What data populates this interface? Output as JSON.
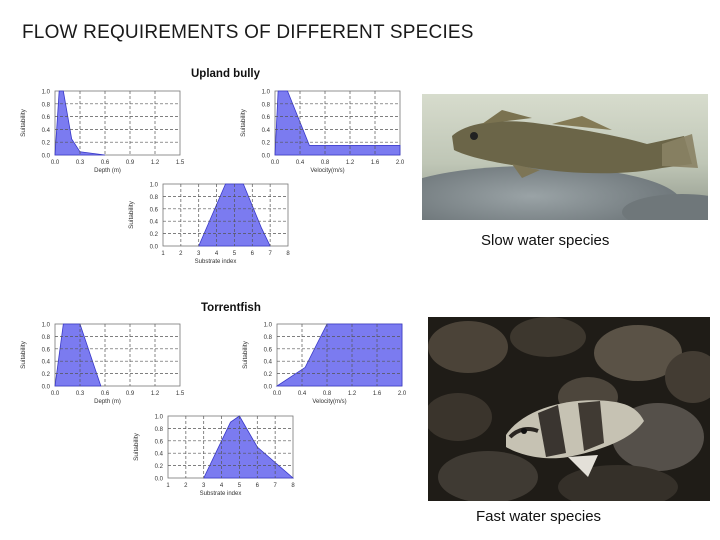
{
  "page": {
    "title": "FLOW REQUIREMENTS OF DIFFERENT SPECIES",
    "groups": [
      {
        "title": "Upland bully"
      },
      {
        "title": "Torrentfish"
      }
    ],
    "captions": {
      "slow": "Slow water species",
      "fast": "Fast water species"
    }
  },
  "colors": {
    "fill": "#7b7bf0",
    "stroke": "#3838c8",
    "grid": "#555555"
  },
  "chart_data": [
    {
      "id": "bully-depth",
      "group": "Upland bully",
      "type": "area",
      "xlabel": "Depth (m)",
      "ylabel": "Suitability",
      "xticks": [
        "0.0",
        "0.3",
        "0.6",
        "0.9",
        "1.2",
        "1.5"
      ],
      "xlim": [
        0,
        1.5
      ],
      "yticks": [
        "0.0",
        "0.2",
        "0.4",
        "0.6",
        "0.8",
        "1.0"
      ],
      "ylim": [
        0,
        1.0
      ],
      "x": [
        0,
        0.05,
        0.1,
        0.2,
        0.3,
        0.6
      ],
      "y": [
        0,
        1.0,
        1.0,
        0.25,
        0.05,
        0
      ]
    },
    {
      "id": "bully-velocity",
      "group": "Upland bully",
      "type": "area",
      "xlabel": "Velocity(m/s)",
      "ylabel": "Suitability",
      "xticks": [
        "0.0",
        "0.4",
        "0.8",
        "1.2",
        "1.6",
        "2.0"
      ],
      "xlim": [
        0,
        2.0
      ],
      "yticks": [
        "0.0",
        "0.2",
        "0.4",
        "0.6",
        "0.8",
        "1.0"
      ],
      "ylim": [
        0,
        1.0
      ],
      "x": [
        0,
        0.05,
        0.2,
        0.55,
        2.0,
        2.0
      ],
      "y": [
        0,
        1.0,
        1.0,
        0.15,
        0.15,
        0
      ]
    },
    {
      "id": "bully-substrate",
      "group": "Upland bully",
      "type": "area",
      "xlabel": "Substrate index",
      "ylabel": "Suitability",
      "xticks": [
        "1",
        "2",
        "3",
        "4",
        "5",
        "6",
        "7",
        "8"
      ],
      "xlim": [
        1,
        8
      ],
      "yticks": [
        "0.0",
        "0.2",
        "0.4",
        "0.6",
        "0.8",
        "1.0"
      ],
      "ylim": [
        0,
        1.0
      ],
      "x": [
        3,
        4.5,
        5.5,
        6.5,
        7
      ],
      "y": [
        0,
        1.0,
        1.0,
        0.3,
        0
      ]
    },
    {
      "id": "torrent-depth",
      "group": "Torrentfish",
      "type": "area",
      "xlabel": "Depth (m)",
      "ylabel": "Suitability",
      "xticks": [
        "0.0",
        "0.3",
        "0.6",
        "0.9",
        "1.2",
        "1.5"
      ],
      "xlim": [
        0,
        1.5
      ],
      "yticks": [
        "0.0",
        "0.2",
        "0.4",
        "0.6",
        "0.8",
        "1.0"
      ],
      "ylim": [
        0,
        1.0
      ],
      "x": [
        0,
        0.1,
        0.3,
        0.55
      ],
      "y": [
        0,
        1.0,
        1.0,
        0
      ]
    },
    {
      "id": "torrent-velocity",
      "group": "Torrentfish",
      "type": "area",
      "xlabel": "Velocity(m/s)",
      "ylabel": "Suitability",
      "xticks": [
        "0.0",
        "0.4",
        "0.8",
        "1.2",
        "1.6",
        "2.0"
      ],
      "xlim": [
        0,
        2.0
      ],
      "yticks": [
        "0.0",
        "0.2",
        "0.4",
        "0.6",
        "0.8",
        "1.0"
      ],
      "ylim": [
        0,
        1.0
      ],
      "x": [
        0,
        0.45,
        0.8,
        2.0,
        2.0
      ],
      "y": [
        0,
        0.3,
        1.0,
        1.0,
        0
      ]
    },
    {
      "id": "torrent-substrate",
      "group": "Torrentfish",
      "type": "area",
      "xlabel": "Substrate index",
      "ylabel": "Suitability",
      "xticks": [
        "1",
        "2",
        "3",
        "4",
        "5",
        "6",
        "7",
        "8"
      ],
      "xlim": [
        1,
        8
      ],
      "yticks": [
        "0.0",
        "0.2",
        "0.4",
        "0.6",
        "0.8",
        "1.0"
      ],
      "ylim": [
        0,
        1.0
      ],
      "x": [
        3,
        4.5,
        5,
        6,
        8
      ],
      "y": [
        0,
        0.9,
        1.0,
        0.5,
        0
      ]
    }
  ]
}
